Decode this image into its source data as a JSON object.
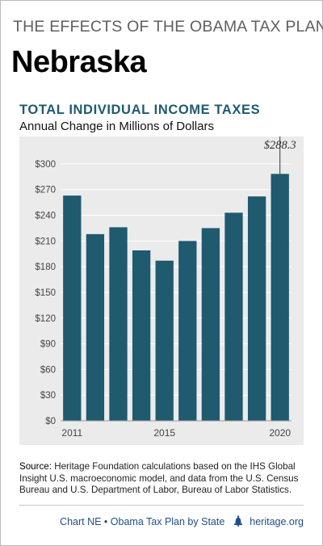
{
  "header": {
    "kicker": "THE EFFECTS OF THE OBAMA TAX PLAN",
    "state": "Nebraska"
  },
  "chart_data": {
    "type": "bar",
    "title": "TOTAL INDIVIDUAL INCOME TAXES",
    "subtitle": "Annual Change in Millions of Dollars",
    "categories": [
      "2011",
      "2012",
      "2013",
      "2014",
      "2015",
      "2016",
      "2017",
      "2018",
      "2019",
      "2020"
    ],
    "x_tick_labels": [
      "2011",
      "2015",
      "2020"
    ],
    "values": [
      263,
      218,
      226,
      199,
      187,
      210,
      225,
      243,
      262,
      288.3
    ],
    "y_ticks": [
      "$0",
      "$30",
      "$60",
      "$90",
      "$120",
      "$150",
      "$180",
      "$210",
      "$240",
      "$270",
      "$300"
    ],
    "ylim": [
      0,
      315
    ],
    "annotation": "$288.3",
    "grid": true,
    "bar_color": "#1f5a6f",
    "background_color": "#ebebeb"
  },
  "source": {
    "label": "Source:",
    "text": " Heritage Foundation calculations based on the IHS Global Insight U.S. macroeconomic model, and data from the U.S. Census Bureau and U.S. Department of Labor, Bureau of Labor Statistics."
  },
  "footer": {
    "chart_id": "Chart NE",
    "separator": " • ",
    "series_name": "Obama Tax Plan by State",
    "site": "heritage.org",
    "bell_icon": "liberty-bell-icon"
  }
}
